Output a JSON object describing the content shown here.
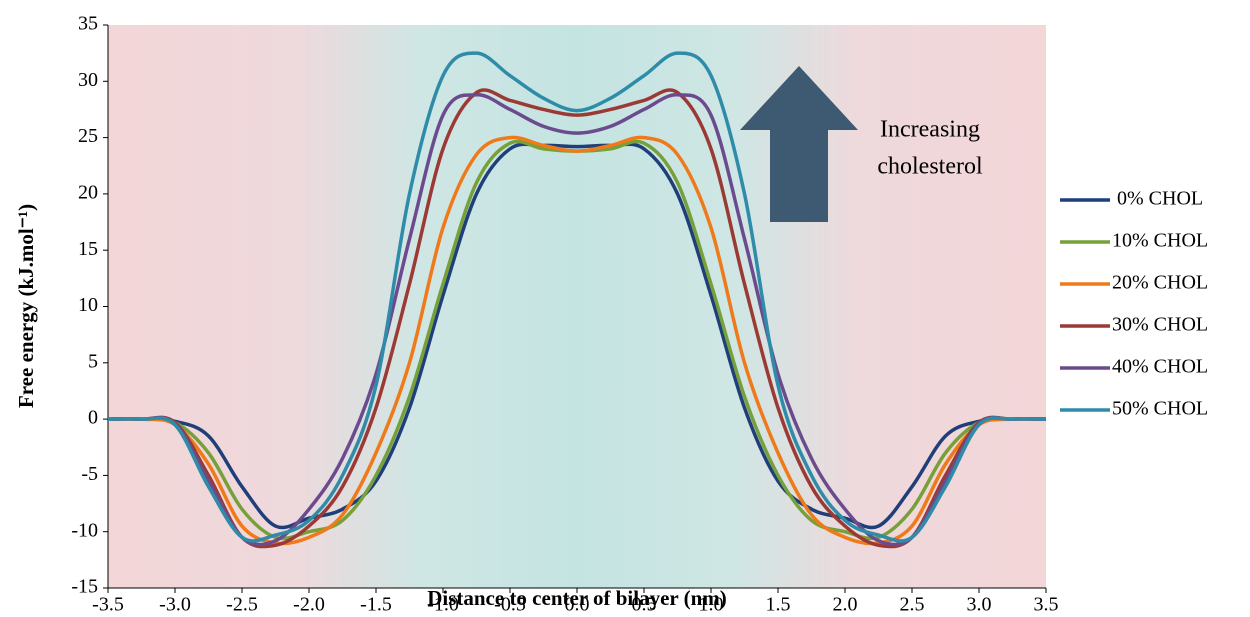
{
  "chart_data": {
    "type": "line",
    "xlabel": "Distance to center of bilayer (nm)",
    "ylabel": "Free energy (kJ.mol⁻¹)",
    "annotation": [
      "Increasing",
      "cholesterol"
    ],
    "x": [
      -3.5,
      -3.25,
      -3.0,
      -2.75,
      -2.5,
      -2.25,
      -2.0,
      -1.75,
      -1.5,
      -1.25,
      -1.0,
      -0.75,
      -0.5,
      -0.25,
      0,
      0.25,
      0.5,
      0.75,
      1.0,
      1.25,
      1.5,
      1.75,
      2.0,
      2.25,
      2.5,
      2.75,
      3.0,
      3.25,
      3.5
    ],
    "series": [
      {
        "name": " 0% CHOL",
        "color": "#1f3f7a",
        "values": [
          0,
          0,
          -0.2,
          -1.5,
          -6,
          -9.5,
          -8.8,
          -8,
          -5.5,
          1,
          11,
          20,
          24,
          24.3,
          24.2,
          24.3,
          24,
          20,
          11,
          1,
          -5.5,
          -8,
          -8.8,
          -9.5,
          -6,
          -1.5,
          -0.2,
          0,
          0
        ]
      },
      {
        "name": "10% CHOL",
        "color": "#77a03a",
        "values": [
          0,
          0,
          -0.3,
          -3,
          -8,
          -10.5,
          -10,
          -9,
          -5,
          2,
          12,
          21,
          24.5,
          24,
          23.8,
          24,
          24.5,
          21,
          12,
          2,
          -5,
          -9,
          -10,
          -10.5,
          -8,
          -3,
          -0.3,
          0,
          0
        ]
      },
      {
        "name": "20% CHOL",
        "color": "#ef7a1a",
        "values": [
          0,
          0,
          -0.5,
          -4,
          -9.5,
          -11,
          -10.5,
          -8.5,
          -3,
          5,
          17,
          23.5,
          25,
          24.3,
          23.8,
          24.3,
          25,
          23.5,
          17,
          5,
          -3,
          -8.5,
          -10.5,
          -11,
          -9.5,
          -4,
          -0.5,
          0,
          0
        ]
      },
      {
        "name": "30% CHOL",
        "color": "#9b3a35",
        "values": [
          0,
          0,
          -0.3,
          -5,
          -10.5,
          -11.2,
          -9.5,
          -6,
          1,
          12,
          24,
          29,
          28.3,
          27.5,
          27,
          27.5,
          28.3,
          29,
          24,
          12,
          1,
          -6,
          -9.5,
          -11.2,
          -10.5,
          -5,
          -0.3,
          0,
          0
        ]
      },
      {
        "name": "40% CHOL",
        "color": "#6b4b8e",
        "values": [
          0,
          0,
          -0.4,
          -5.5,
          -10.5,
          -10.8,
          -8,
          -3.5,
          4,
          16,
          27,
          28.8,
          27.5,
          26,
          25.4,
          26,
          27.5,
          28.8,
          27,
          16,
          4,
          -3.5,
          -8,
          -10.8,
          -10.5,
          -5.5,
          -0.4,
          0,
          0
        ]
      },
      {
        "name": "50% CHOL",
        "color": "#2e8ca8",
        "values": [
          0,
          0,
          -0.5,
          -6,
          -10.5,
          -10.3,
          -9,
          -5,
          3,
          20,
          30.5,
          32.5,
          30.5,
          28.5,
          27.4,
          28.5,
          30.5,
          32.5,
          30.5,
          20,
          3,
          -5,
          -9,
          -10.3,
          -10.5,
          -6,
          -0.5,
          0,
          0
        ]
      }
    ],
    "xlim": [
      -3.5,
      3.5
    ],
    "xticks": [
      -3.5,
      {
        "value": -3.0,
        "label": "-3.0"
      },
      -2.5,
      {
        "value": -2.0,
        "label": "-2.0"
      },
      -1.5,
      {
        "value": -1.0,
        "label": "-1.0"
      },
      -0.5,
      {
        "value": 0,
        "label": "0.0"
      },
      0.5,
      {
        "value": 1.0,
        "label": "1.0"
      },
      1.5,
      {
        "value": 2.0,
        "label": "2.0"
      },
      2.5,
      {
        "value": 3.0,
        "label": "3.0"
      },
      3.5
    ],
    "ylim": [
      -15,
      35
    ],
    "yticks": [
      -15,
      -10,
      -5,
      0,
      5,
      10,
      15,
      20,
      25,
      30,
      35
    ],
    "legend": "right"
  }
}
